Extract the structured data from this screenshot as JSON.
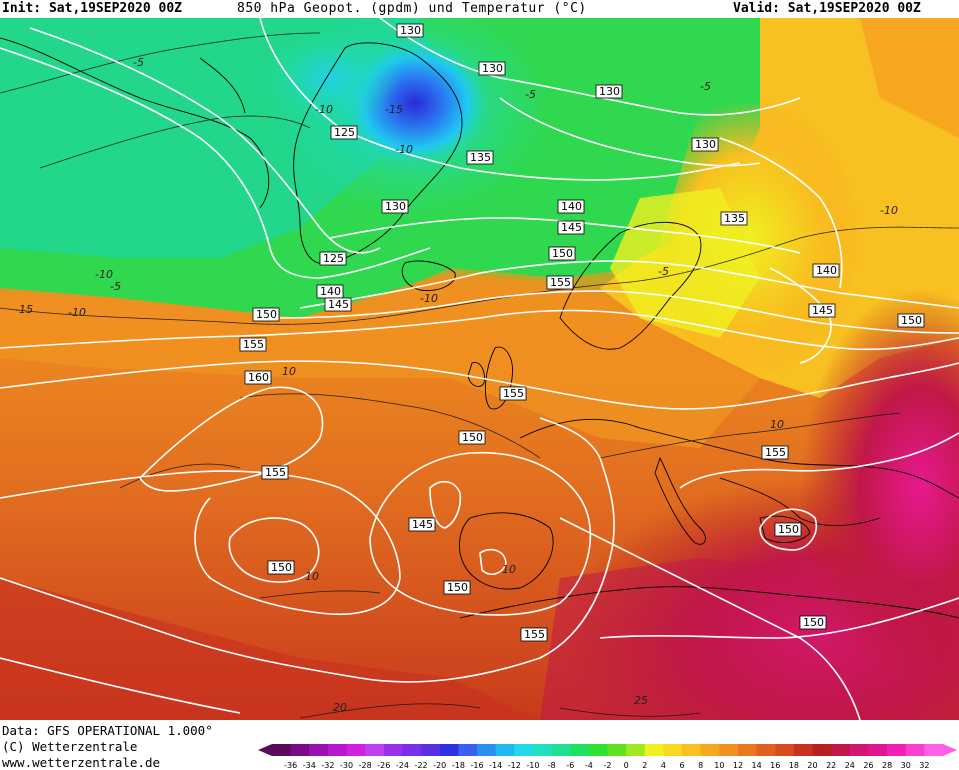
{
  "header": {
    "init": "Init: Sat,19SEP2020 00Z",
    "title": "850 hPa Geopot. (gpdm) und Temperatur (°C)",
    "valid": "Valid: Sat,19SEP2020 00Z"
  },
  "footer": {
    "data_source": "Data: GFS OPERATIONAL 1.000°",
    "copyright": "(C) Wetterzentrale",
    "url": "www.wetterzentrale.de"
  },
  "colorbar": {
    "ticks": [
      "-36",
      "-34",
      "-32",
      "-30",
      "-28",
      "-26",
      "-24",
      "-22",
      "-20",
      "-18",
      "-16",
      "-14",
      "-12",
      "-10",
      "-8",
      "-6",
      "-4",
      "-2",
      "0",
      "2",
      "4",
      "6",
      "8",
      "10",
      "12",
      "14",
      "16",
      "18",
      "20",
      "22",
      "24",
      "26",
      "28",
      "30",
      "32"
    ],
    "colors": [
      "#5a0a5a",
      "#7a0a8a",
      "#9a10b0",
      "#b818d0",
      "#d020e0",
      "#c040f0",
      "#9a30e8",
      "#7a30e8",
      "#5a30e0",
      "#3030e0",
      "#3a60f0",
      "#2a90f0",
      "#20b8f0",
      "#20d8e8",
      "#20e0c0",
      "#20e090",
      "#20e060",
      "#30e030",
      "#60e020",
      "#a0e820",
      "#f0f020",
      "#f8d820",
      "#f8c020",
      "#f8a820",
      "#f09020",
      "#e87820",
      "#e06020",
      "#d84a20",
      "#c83020",
      "#b82020",
      "#c01848",
      "#d01870",
      "#e01890",
      "#f020b0",
      "#f840d0",
      "#ff60e8"
    ]
  },
  "geopotential_labels": [
    "130",
    "130",
    "130",
    "130",
    "125",
    "135",
    "130",
    "140",
    "145",
    "125",
    "150",
    "135",
    "140",
    "145",
    "150",
    "155",
    "140",
    "145",
    "150",
    "155",
    "160",
    "155",
    "150",
    "155",
    "150",
    "145",
    "150",
    "150",
    "155",
    "155",
    "150"
  ],
  "temperature_labels": [
    "-5",
    "-10",
    "-15",
    "-10",
    "-5",
    "-5",
    "-10",
    "-15",
    "-10",
    "-5",
    "-10",
    "-5",
    "-10",
    "10",
    "10",
    "10",
    "10",
    "25",
    "20"
  ]
}
